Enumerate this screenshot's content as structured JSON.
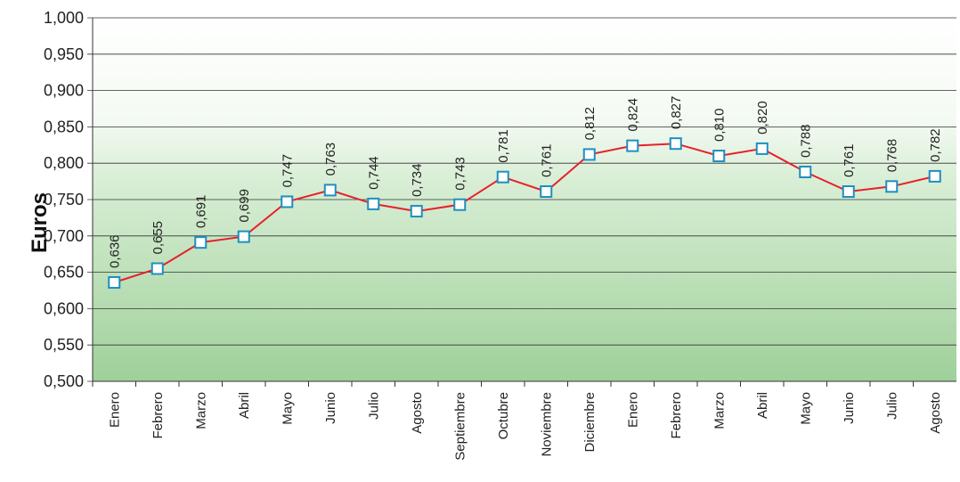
{
  "chart_data": {
    "type": "line",
    "title": "",
    "xlabel": "",
    "ylabel": "Euros",
    "ylim": [
      0.5,
      1.0
    ],
    "yticks": [
      "0,500",
      "0,550",
      "0,600",
      "0,650",
      "0,700",
      "0,750",
      "0,800",
      "0,850",
      "0,900",
      "0,950",
      "1,000"
    ],
    "categories": [
      "Enero",
      "Febrero",
      "Marzo",
      "Abril",
      "Mayo",
      "Junio",
      "Julio",
      "Agosto",
      "Septiembre",
      "Octubre",
      "Noviembre",
      "Diciembre",
      "Enero",
      "Febrero",
      "Marzo",
      "Abril",
      "Mayo",
      "Junio",
      "Julio",
      "Agosto"
    ],
    "series": [
      {
        "values": [
          0.636,
          0.655,
          0.691,
          0.699,
          0.747,
          0.763,
          0.744,
          0.734,
          0.743,
          0.781,
          0.761,
          0.812,
          0.824,
          0.827,
          0.81,
          0.82,
          0.788,
          0.761,
          0.768,
          0.782
        ],
        "labels": [
          "0,636",
          "0,655",
          "0,691",
          "0,699",
          "0,747",
          "0,763",
          "0,744",
          "0,734",
          "0,743",
          "0,781",
          "0,761",
          "0,812",
          "0,824",
          "0,827",
          "0,810",
          "0,820",
          "0,788",
          "0,761",
          "0,768",
          "0,782"
        ]
      }
    ],
    "grid": true,
    "colors": {
      "line": "#e8202a",
      "marker_edge": "#1e8fc0",
      "marker_fill": "#ffffff",
      "background_top": "#ffffff",
      "background_bottom": "#9fd09a",
      "grid": "#333333"
    }
  }
}
